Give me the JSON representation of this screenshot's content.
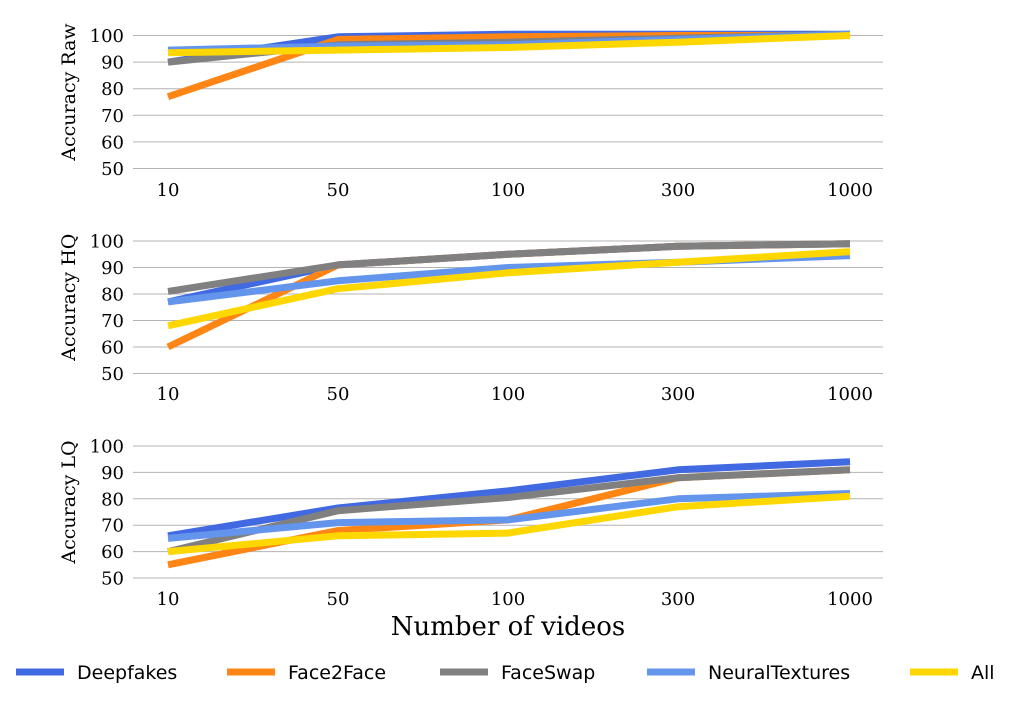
{
  "chart_data": [
    {
      "type": "line",
      "ylabel": "Accuracy Raw",
      "categories": [
        "10",
        "50",
        "100",
        "300",
        "1000"
      ],
      "ylim": [
        50,
        100
      ],
      "yticks": [
        50,
        60,
        70,
        80,
        90,
        100
      ],
      "grid": true,
      "series": [
        {
          "name": "Deepfakes",
          "values": [
            90,
            99.5,
            100.5,
            100.5,
            100.5
          ]
        },
        {
          "name": "Face2Face",
          "values": [
            77,
            98.5,
            99.5,
            100,
            100
          ]
        },
        {
          "name": "FaceSwap",
          "values": [
            90,
            96.5,
            97.5,
            99,
            100.5
          ]
        },
        {
          "name": "NeuralTextures",
          "values": [
            94.5,
            96,
            96.5,
            98.5,
            100.5
          ]
        },
        {
          "name": "All",
          "values": [
            93.5,
            94.5,
            95.5,
            97.5,
            100
          ]
        }
      ]
    },
    {
      "type": "line",
      "ylabel": "Accuracy HQ",
      "categories": [
        "10",
        "50",
        "100",
        "300",
        "1000"
      ],
      "ylim": [
        50,
        100
      ],
      "yticks": [
        50,
        60,
        70,
        80,
        90,
        100
      ],
      "grid": true,
      "series": [
        {
          "name": "Deepfakes",
          "values": [
            77,
            91,
            95,
            98,
            99
          ]
        },
        {
          "name": "Face2Face",
          "values": [
            60,
            91,
            95,
            98,
            99
          ]
        },
        {
          "name": "FaceSwap",
          "values": [
            81,
            91,
            95,
            98,
            99
          ]
        },
        {
          "name": "NeuralTextures",
          "values": [
            77,
            85,
            90,
            92,
            94.5
          ]
        },
        {
          "name": "All",
          "values": [
            68,
            82,
            88,
            92,
            96
          ]
        }
      ]
    },
    {
      "type": "line",
      "ylabel": "Accuracy LQ",
      "categories": [
        "10",
        "50",
        "100",
        "300",
        "1000"
      ],
      "ylim": [
        50,
        100
      ],
      "yticks": [
        50,
        60,
        70,
        80,
        90,
        100
      ],
      "grid": true,
      "series": [
        {
          "name": "Deepfakes",
          "values": [
            66,
            76.5,
            83,
            91,
            94
          ]
        },
        {
          "name": "Face2Face",
          "values": [
            55,
            68,
            72,
            88,
            91
          ]
        },
        {
          "name": "FaceSwap",
          "values": [
            60,
            75.5,
            80.5,
            88,
            91
          ]
        },
        {
          "name": "NeuralTextures",
          "values": [
            65,
            71,
            72,
            80,
            82
          ]
        },
        {
          "name": "All",
          "values": [
            60,
            66,
            67,
            77,
            81
          ]
        }
      ]
    }
  ],
  "xlabel": "Number of videos",
  "legend": {
    "position": "bottom",
    "items": [
      {
        "name": "Deepfakes",
        "color": "#4169e1"
      },
      {
        "name": "Face2Face",
        "color": "#ff8514"
      },
      {
        "name": "FaceSwap",
        "color": "#808080"
      },
      {
        "name": "NeuralTextures",
        "color": "#6495ed"
      },
      {
        "name": "All",
        "color": "#ffd700"
      }
    ]
  }
}
